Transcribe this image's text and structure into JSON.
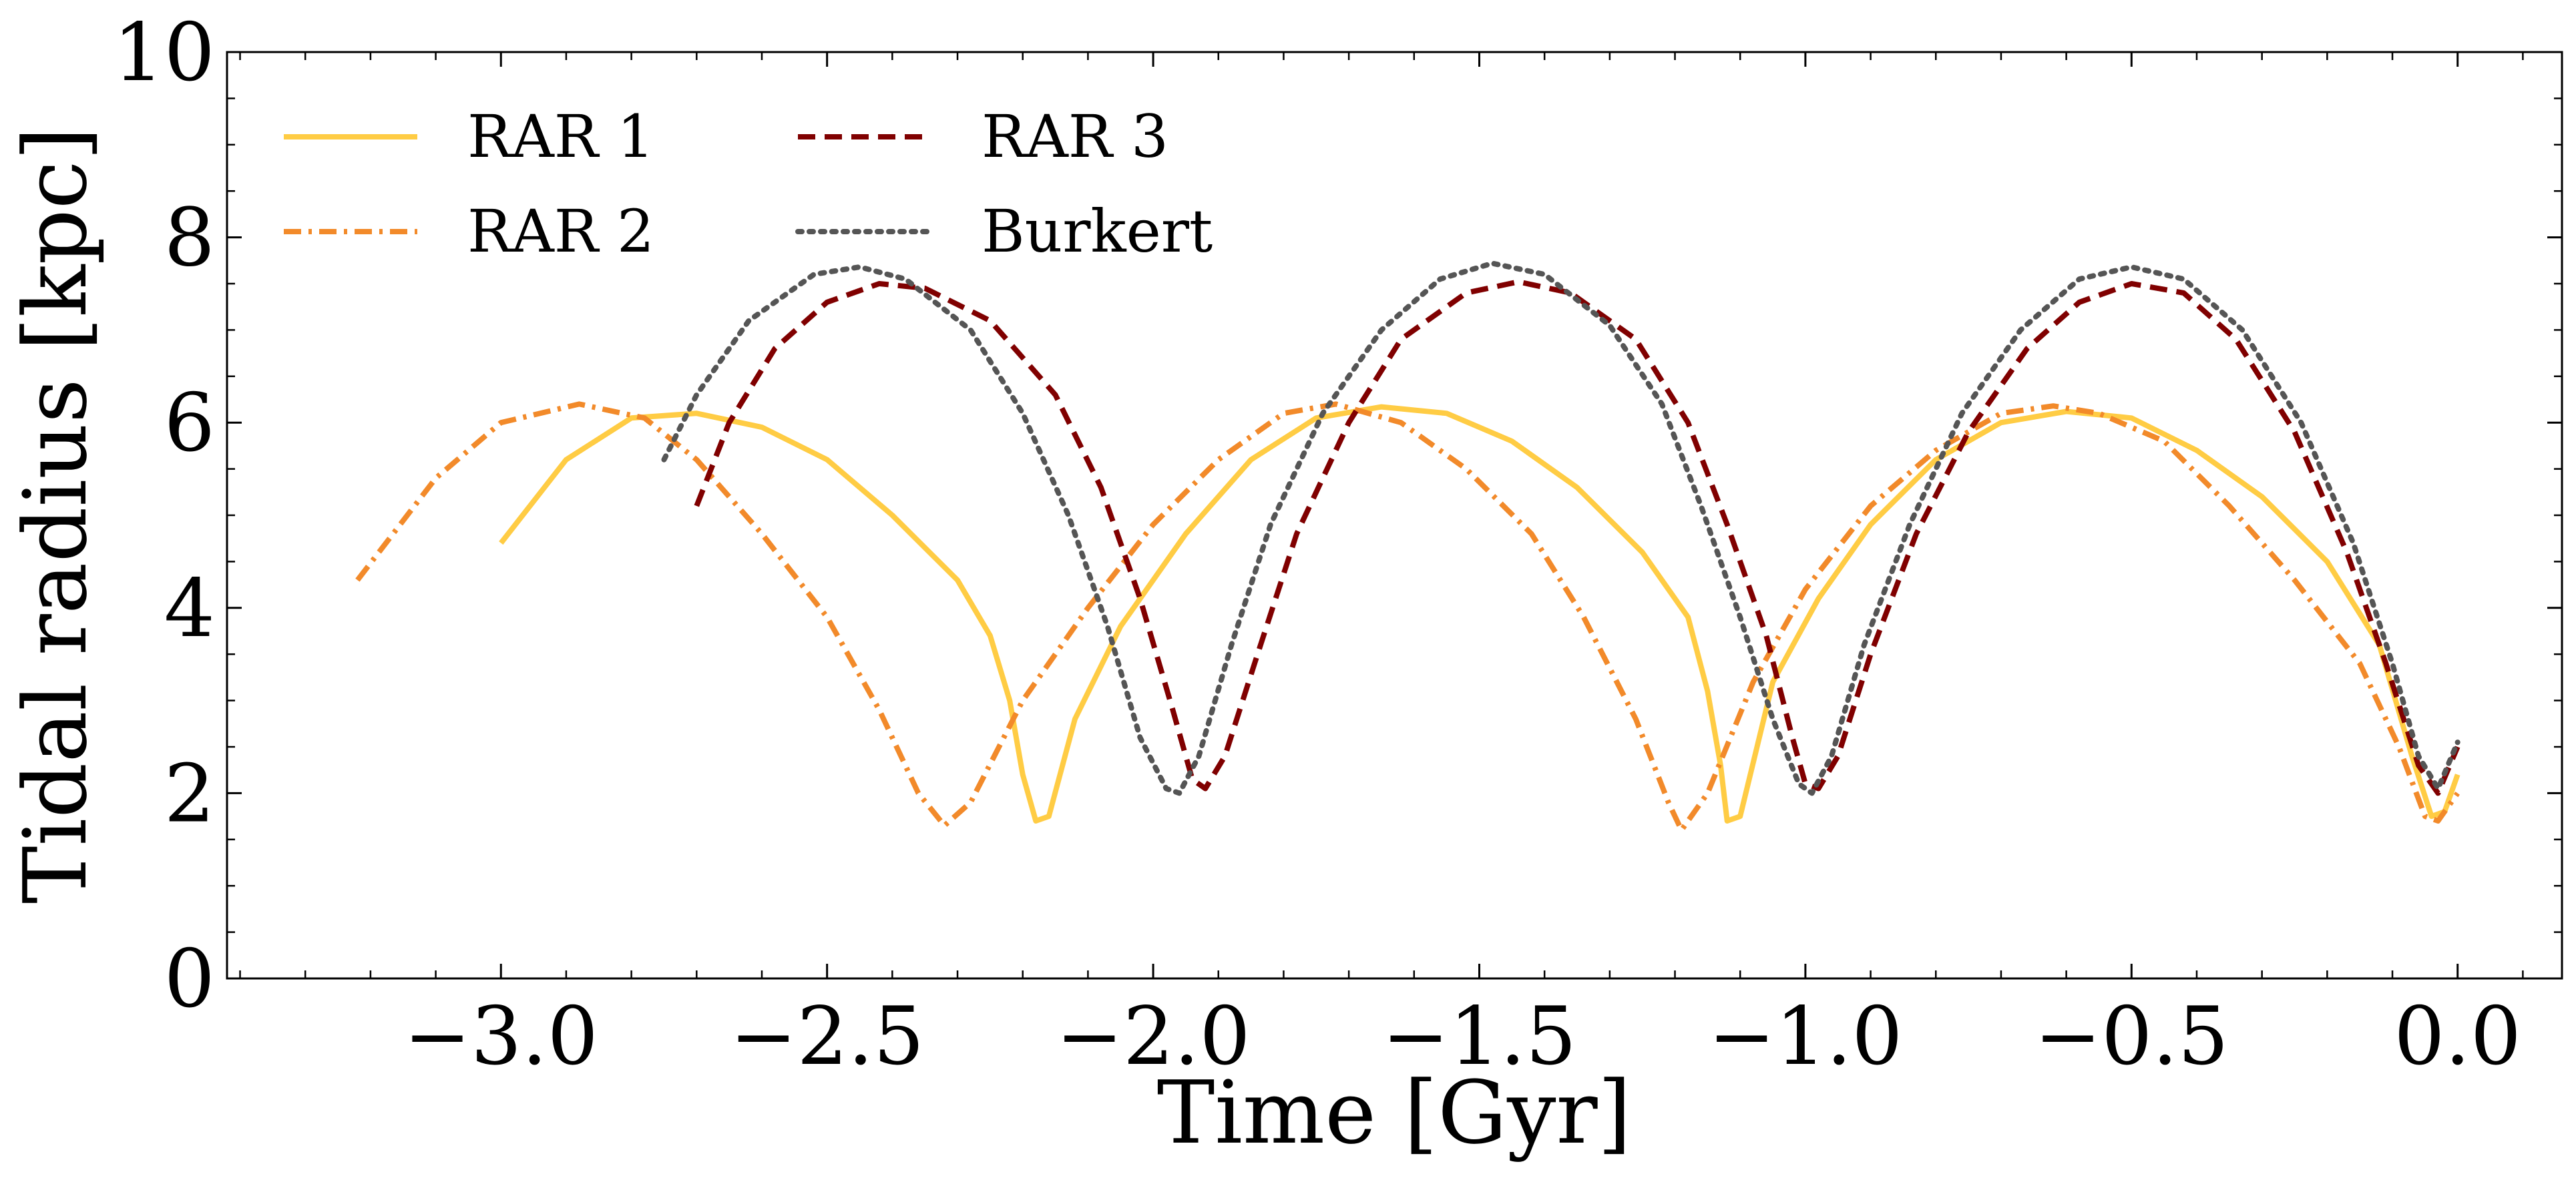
{
  "chart_data": {
    "type": "line",
    "title": "",
    "xlabel": "Time [Gyr]",
    "ylabel": "Tidal radius [kpc]",
    "xlim": [
      -3.42,
      0.16
    ],
    "ylim": [
      0,
      10
    ],
    "xticks": [
      -3.0,
      -2.5,
      -2.0,
      -1.5,
      -1.0,
      -0.5,
      0.0
    ],
    "xtick_labels": [
      "−3.0",
      "−2.5",
      "−2.0",
      "−1.5",
      "−1.0",
      "−0.5",
      "0.0"
    ],
    "yticks": [
      0,
      2,
      4,
      6,
      8,
      10
    ],
    "ytick_labels": [
      "0",
      "2",
      "4",
      "6",
      "8",
      "10"
    ],
    "grid": false,
    "legend_location": "upper-left",
    "series": [
      {
        "name": "RAR 1",
        "color": "#ffcc44",
        "style": "solid",
        "points": [
          [
            -3.0,
            4.7
          ],
          [
            -2.9,
            5.6
          ],
          [
            -2.8,
            6.05
          ],
          [
            -2.7,
            6.1
          ],
          [
            -2.6,
            5.95
          ],
          [
            -2.5,
            5.6
          ],
          [
            -2.4,
            5.0
          ],
          [
            -2.3,
            4.3
          ],
          [
            -2.25,
            3.7
          ],
          [
            -2.22,
            3.0
          ],
          [
            -2.2,
            2.2
          ],
          [
            -2.18,
            1.7
          ],
          [
            -2.16,
            1.75
          ],
          [
            -2.12,
            2.8
          ],
          [
            -2.05,
            3.8
          ],
          [
            -1.95,
            4.8
          ],
          [
            -1.85,
            5.6
          ],
          [
            -1.75,
            6.05
          ],
          [
            -1.65,
            6.17
          ],
          [
            -1.55,
            6.1
          ],
          [
            -1.45,
            5.8
          ],
          [
            -1.35,
            5.3
          ],
          [
            -1.25,
            4.6
          ],
          [
            -1.18,
            3.9
          ],
          [
            -1.15,
            3.1
          ],
          [
            -1.13,
            2.3
          ],
          [
            -1.12,
            1.7
          ],
          [
            -1.1,
            1.75
          ],
          [
            -1.05,
            3.2
          ],
          [
            -0.98,
            4.1
          ],
          [
            -0.9,
            4.9
          ],
          [
            -0.8,
            5.6
          ],
          [
            -0.7,
            6.0
          ],
          [
            -0.6,
            6.12
          ],
          [
            -0.5,
            6.05
          ],
          [
            -0.4,
            5.7
          ],
          [
            -0.3,
            5.2
          ],
          [
            -0.2,
            4.5
          ],
          [
            -0.12,
            3.6
          ],
          [
            -0.07,
            2.4
          ],
          [
            -0.04,
            1.75
          ],
          [
            -0.02,
            1.8
          ],
          [
            0.0,
            2.2
          ]
        ]
      },
      {
        "name": "RAR 2",
        "color": "#f28a2a",
        "style": "dashdot",
        "points": [
          [
            -3.22,
            4.3
          ],
          [
            -3.1,
            5.4
          ],
          [
            -3.0,
            6.0
          ],
          [
            -2.88,
            6.2
          ],
          [
            -2.78,
            6.05
          ],
          [
            -2.7,
            5.6
          ],
          [
            -2.6,
            4.8
          ],
          [
            -2.5,
            3.9
          ],
          [
            -2.42,
            2.9
          ],
          [
            -2.36,
            2.0
          ],
          [
            -2.32,
            1.65
          ],
          [
            -2.28,
            1.9
          ],
          [
            -2.2,
            3.0
          ],
          [
            -2.1,
            4.0
          ],
          [
            -2.0,
            4.9
          ],
          [
            -1.9,
            5.6
          ],
          [
            -1.8,
            6.1
          ],
          [
            -1.72,
            6.2
          ],
          [
            -1.62,
            6.0
          ],
          [
            -1.52,
            5.5
          ],
          [
            -1.42,
            4.8
          ],
          [
            -1.34,
            3.9
          ],
          [
            -1.26,
            2.8
          ],
          [
            -1.21,
            1.9
          ],
          [
            -1.19,
            1.6
          ],
          [
            -1.15,
            2.0
          ],
          [
            -1.08,
            3.2
          ],
          [
            -1.0,
            4.2
          ],
          [
            -0.9,
            5.1
          ],
          [
            -0.8,
            5.7
          ],
          [
            -0.7,
            6.1
          ],
          [
            -0.62,
            6.18
          ],
          [
            -0.55,
            6.1
          ],
          [
            -0.45,
            5.8
          ],
          [
            -0.35,
            5.1
          ],
          [
            -0.25,
            4.3
          ],
          [
            -0.15,
            3.4
          ],
          [
            -0.09,
            2.5
          ],
          [
            -0.05,
            1.75
          ],
          [
            -0.03,
            1.7
          ],
          [
            0.0,
            2.0
          ]
        ]
      },
      {
        "name": "RAR 3",
        "color": "#800000",
        "style": "dashed",
        "points": [
          [
            -2.7,
            5.1
          ],
          [
            -2.65,
            6.0
          ],
          [
            -2.58,
            6.8
          ],
          [
            -2.5,
            7.3
          ],
          [
            -2.42,
            7.5
          ],
          [
            -2.35,
            7.45
          ],
          [
            -2.25,
            7.1
          ],
          [
            -2.15,
            6.3
          ],
          [
            -2.08,
            5.3
          ],
          [
            -2.02,
            4.1
          ],
          [
            -1.97,
            2.9
          ],
          [
            -1.94,
            2.15
          ],
          [
            -1.92,
            2.05
          ],
          [
            -1.89,
            2.4
          ],
          [
            -1.84,
            3.5
          ],
          [
            -1.78,
            4.8
          ],
          [
            -1.7,
            6.0
          ],
          [
            -1.62,
            6.9
          ],
          [
            -1.52,
            7.4
          ],
          [
            -1.44,
            7.52
          ],
          [
            -1.36,
            7.4
          ],
          [
            -1.26,
            6.9
          ],
          [
            -1.18,
            6.0
          ],
          [
            -1.12,
            4.9
          ],
          [
            -1.06,
            3.7
          ],
          [
            -1.02,
            2.6
          ],
          [
            -1.0,
            2.1
          ],
          [
            -0.98,
            2.05
          ],
          [
            -0.95,
            2.4
          ],
          [
            -0.9,
            3.5
          ],
          [
            -0.83,
            4.8
          ],
          [
            -0.75,
            5.9
          ],
          [
            -0.66,
            6.8
          ],
          [
            -0.58,
            7.3
          ],
          [
            -0.5,
            7.5
          ],
          [
            -0.42,
            7.4
          ],
          [
            -0.34,
            6.9
          ],
          [
            -0.25,
            5.9
          ],
          [
            -0.17,
            4.6
          ],
          [
            -0.11,
            3.4
          ],
          [
            -0.06,
            2.3
          ],
          [
            -0.03,
            2.0
          ],
          [
            0.0,
            2.5
          ]
        ]
      },
      {
        "name": "Burkert",
        "color": "#555555",
        "style": "dotted",
        "points": [
          [
            -2.75,
            5.6
          ],
          [
            -2.7,
            6.3
          ],
          [
            -2.62,
            7.1
          ],
          [
            -2.52,
            7.6
          ],
          [
            -2.45,
            7.68
          ],
          [
            -2.38,
            7.55
          ],
          [
            -2.28,
            7.0
          ],
          [
            -2.2,
            6.1
          ],
          [
            -2.13,
            5.0
          ],
          [
            -2.07,
            3.8
          ],
          [
            -2.02,
            2.6
          ],
          [
            -1.98,
            2.05
          ],
          [
            -1.96,
            2.0
          ],
          [
            -1.93,
            2.4
          ],
          [
            -1.88,
            3.6
          ],
          [
            -1.82,
            4.9
          ],
          [
            -1.74,
            6.1
          ],
          [
            -1.65,
            7.0
          ],
          [
            -1.56,
            7.55
          ],
          [
            -1.48,
            7.72
          ],
          [
            -1.4,
            7.6
          ],
          [
            -1.3,
            7.05
          ],
          [
            -1.22,
            6.2
          ],
          [
            -1.16,
            5.1
          ],
          [
            -1.1,
            3.9
          ],
          [
            -1.05,
            2.8
          ],
          [
            -1.01,
            2.1
          ],
          [
            -0.99,
            2.0
          ],
          [
            -0.96,
            2.4
          ],
          [
            -0.91,
            3.6
          ],
          [
            -0.84,
            4.9
          ],
          [
            -0.76,
            6.1
          ],
          [
            -0.67,
            7.0
          ],
          [
            -0.58,
            7.55
          ],
          [
            -0.5,
            7.68
          ],
          [
            -0.42,
            7.55
          ],
          [
            -0.33,
            7.0
          ],
          [
            -0.24,
            6.0
          ],
          [
            -0.16,
            4.7
          ],
          [
            -0.1,
            3.4
          ],
          [
            -0.06,
            2.4
          ],
          [
            -0.03,
            2.05
          ],
          [
            0.0,
            2.55
          ]
        ]
      }
    ]
  }
}
